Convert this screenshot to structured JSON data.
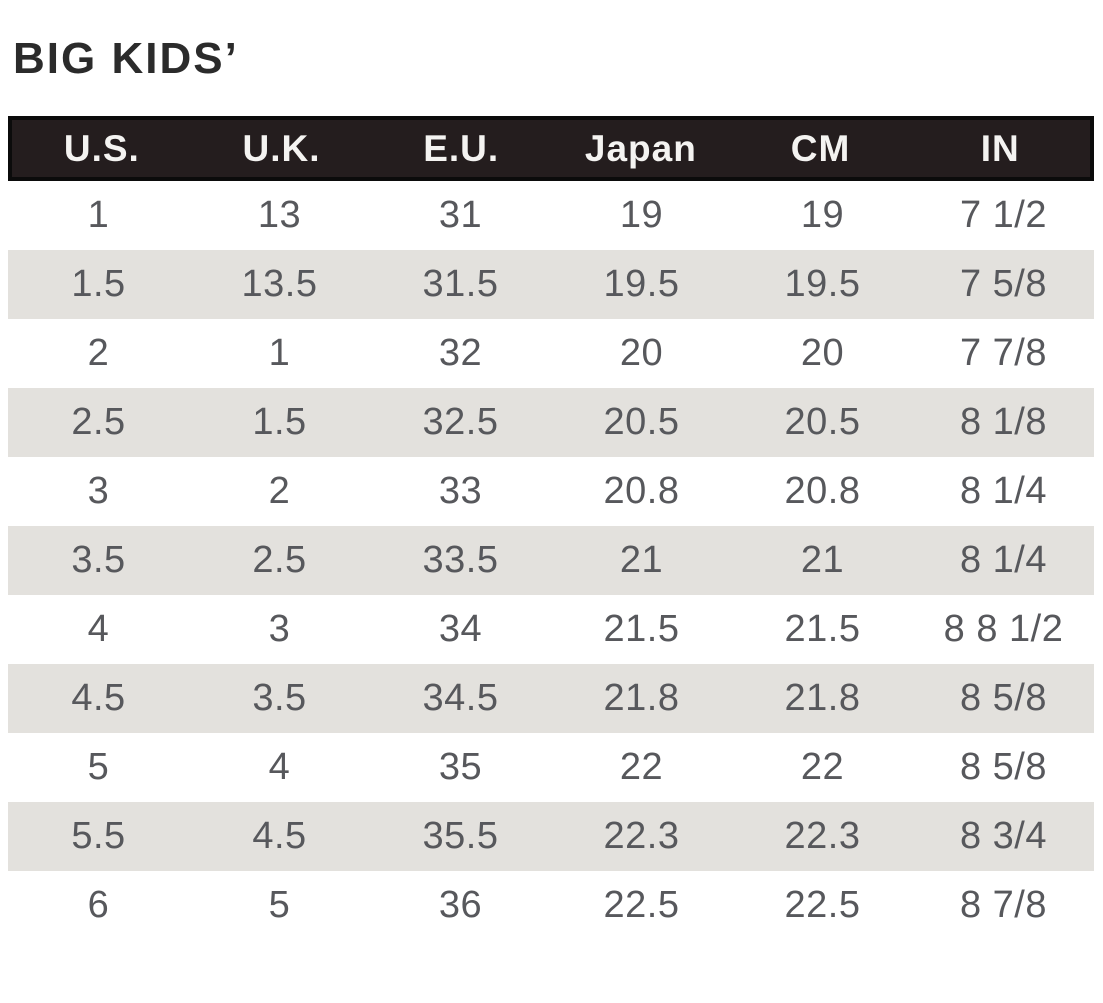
{
  "title": "BIG KIDS’",
  "chart_data": {
    "type": "table",
    "title": "BIG KIDS’",
    "columns": [
      "U.S.",
      "U.K.",
      "E.U.",
      "Japan",
      "CM",
      "IN"
    ],
    "rows": [
      [
        "1",
        "13",
        "31",
        "19",
        "19",
        "7 1/2"
      ],
      [
        "1.5",
        "13.5",
        "31.5",
        "19.5",
        "19.5",
        "7 5/8"
      ],
      [
        "2",
        "1",
        "32",
        "20",
        "20",
        "7 7/8"
      ],
      [
        "2.5",
        "1.5",
        "32.5",
        "20.5",
        "20.5",
        "8 1/8"
      ],
      [
        "3",
        "2",
        "33",
        "20.8",
        "20.8",
        "8 1/4"
      ],
      [
        "3.5",
        "2.5",
        "33.5",
        "21",
        "21",
        "8 1/4"
      ],
      [
        "4",
        "3",
        "34",
        "21.5",
        "21.5",
        "8 8 1/2"
      ],
      [
        "4.5",
        "3.5",
        "34.5",
        "21.8",
        "21.8",
        "8 5/8"
      ],
      [
        "5",
        "4",
        "35",
        "22",
        "22",
        "8 5/8"
      ],
      [
        "5.5",
        "4.5",
        "35.5",
        "22.3",
        "22.3",
        "8 3/4"
      ],
      [
        "6",
        "5",
        "36",
        "22.5",
        "22.5",
        "8 7/8"
      ]
    ],
    "layout": {
      "striped": true,
      "stripe_rows": "even",
      "header_style": "black-bar-white-text"
    }
  },
  "colors": {
    "title_text": "#2b2b2b",
    "header_bg": "#241d1e",
    "header_border": "#0b0b0b",
    "header_text": "#f4f3f1",
    "row_alt_bg": "#e3e1dd",
    "row_text": "#57585c",
    "page_bg": "#ffffff"
  }
}
